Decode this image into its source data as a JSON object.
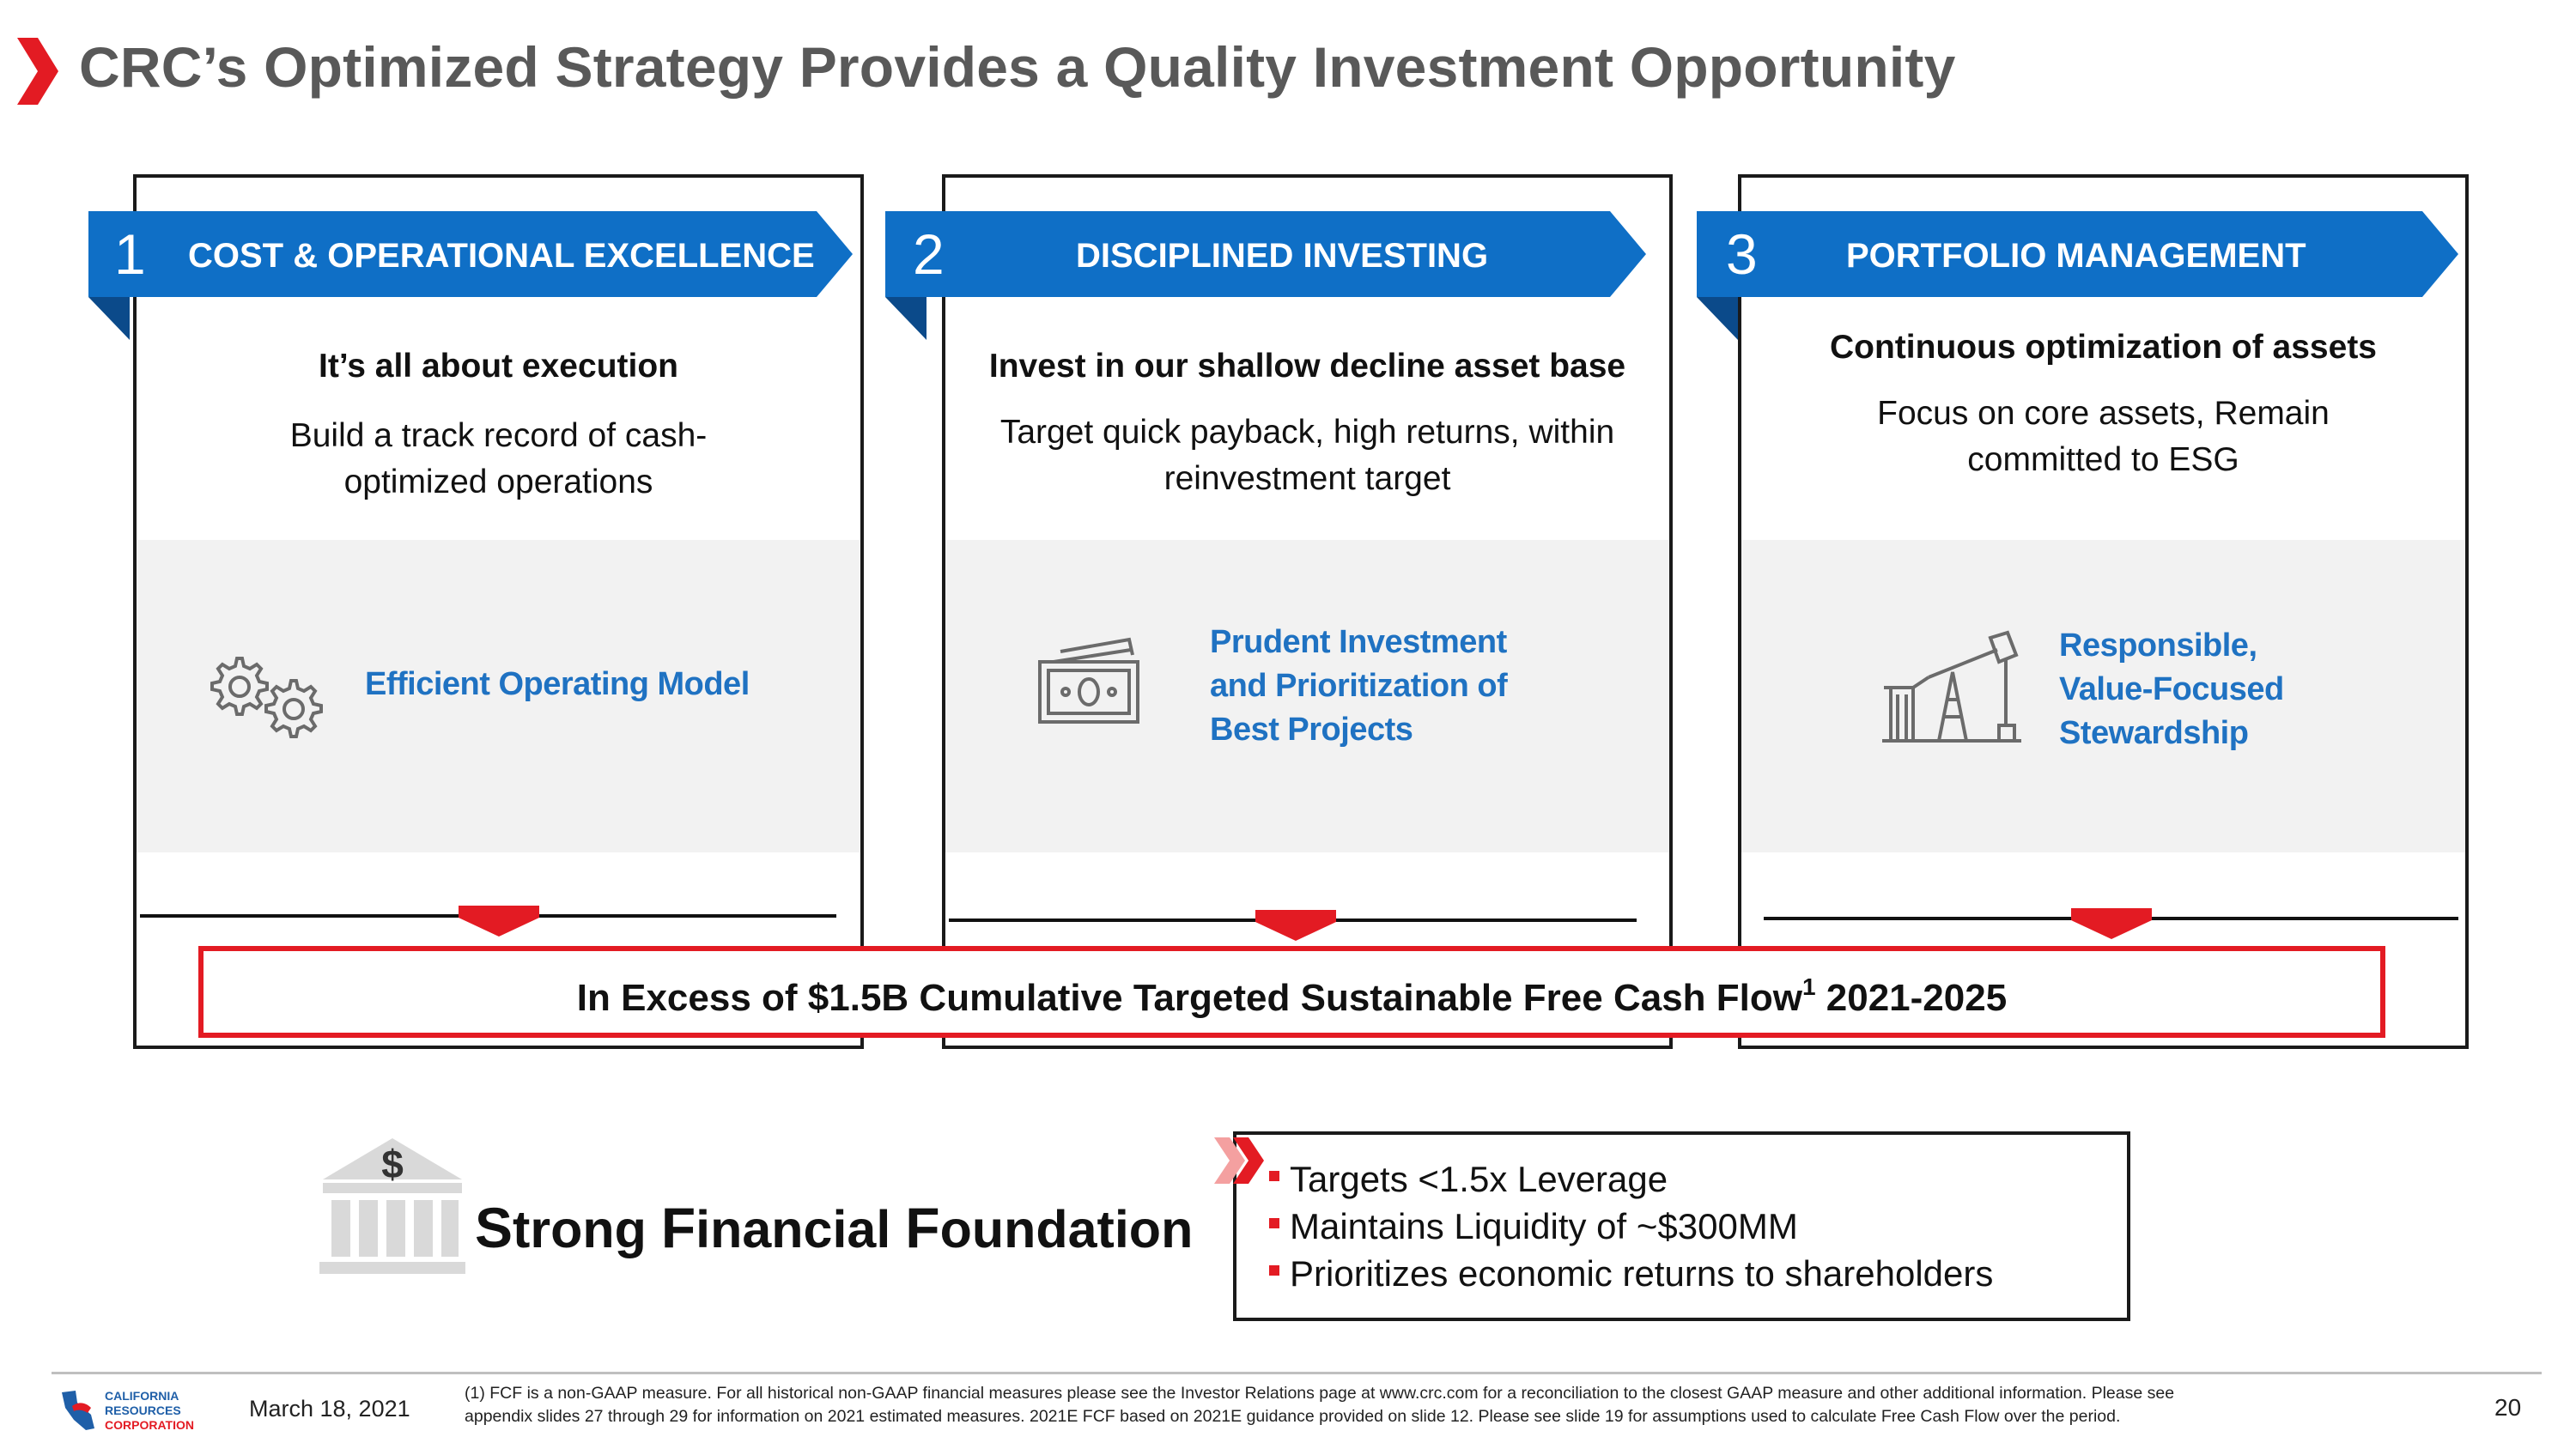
{
  "colors": {
    "accent_blue": "#0f6fc6",
    "accent_red": "#e31b23",
    "title_gray": "#595959",
    "focus_blue": "#1f72c2"
  },
  "title": "CRC’s Optimized Strategy Provides a Quality Investment Opportunity",
  "pillars": [
    {
      "number": "1",
      "label": "COST & OPERATIONAL EXCELLENCE",
      "headline": "It’s all about execution",
      "body_lines": [
        "Build a track record of cash-",
        "optimized operations"
      ],
      "icon": "gears-icon",
      "focus_lines": [
        "Efficient Operating Model"
      ]
    },
    {
      "number": "2",
      "label": "DISCIPLINED INVESTING",
      "headline": "Invest in our shallow decline asset base",
      "body_lines": [
        "Target quick payback, high returns, within",
        "reinvestment target"
      ],
      "icon": "money-icon",
      "focus_lines": [
        "Prudent Investment",
        "and Prioritization of",
        "Best Projects"
      ]
    },
    {
      "number": "3",
      "label": "PORTFOLIO MANAGEMENT",
      "headline": "Continuous optimization of assets",
      "body_lines": [
        "Focus on core assets, Remain",
        "committed to ESG"
      ],
      "icon": "pumpjack-icon",
      "focus_lines": [
        "Responsible,",
        "Value-Focused",
        "Stewardship"
      ]
    }
  ],
  "target": {
    "text_before": "In Excess of $1.5B Cumulative Targeted Sustainable Free Cash Flow",
    "superscript": "1",
    "text_after": " 2021-2025"
  },
  "financial": {
    "icon": "bank-icon",
    "dollar_sign": "$",
    "title_parts": [
      "S",
      "trong ",
      "F",
      "inancial ",
      "F",
      "oundation"
    ],
    "bullets": [
      "Targets <1.5x Leverage",
      "Maintains Liquidity of ~$300MM",
      "Prioritizes economic returns to shareholders"
    ]
  },
  "footer": {
    "logo_lines": [
      "CALIFORNIA",
      "RESOURCES",
      "CORPORATION"
    ],
    "date": "March 18, 2021",
    "footnote_lines": [
      "(1) FCF is a non-GAAP measure. For all historical non-GAAP financial measures please see the Investor Relations page at www.crc.com for a reconciliation to the closest GAAP measure and other additional information. Please see",
      "appendix slides 27 through 29 for information on 2021 estimated measures. 2021E FCF based on 2021E guidance provided on slide 12. Please see slide 19 for assumptions used to calculate Free Cash Flow over the period."
    ],
    "page_number": "20"
  }
}
